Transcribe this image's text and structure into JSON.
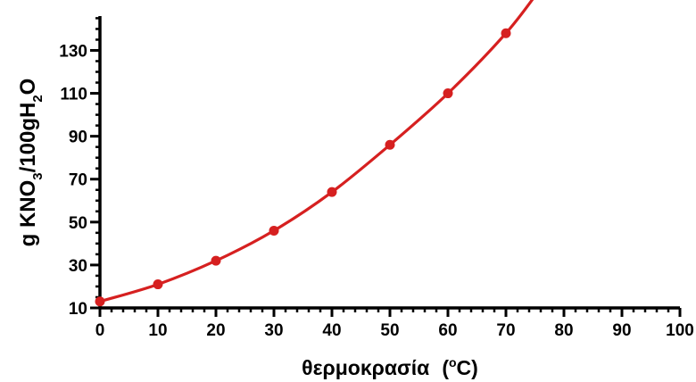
{
  "chart_data": {
    "type": "line",
    "xlabel": {
      "main": "θερμοκρασία",
      "unit_open": "(",
      "unit_degree": "o",
      "unit_letter": "C",
      "unit_close": ")"
    },
    "ylabel": {
      "parts": [
        {
          "text": "g KNO",
          "shift": "none"
        },
        {
          "text": "3",
          "shift": "sub"
        },
        {
          "text": "/100gH",
          "shift": "none"
        },
        {
          "text": "2",
          "shift": "sub"
        },
        {
          "text": "O",
          "shift": "none"
        }
      ]
    },
    "xlim": [
      0,
      100
    ],
    "ylim": [
      10,
      146
    ],
    "x_ticks": [
      0,
      10,
      20,
      30,
      40,
      50,
      60,
      70,
      80,
      90,
      100
    ],
    "y_ticks": [
      10,
      30,
      50,
      70,
      90,
      110,
      130
    ],
    "x_minor_step": 2,
    "y_minor_step": 5,
    "grid": false,
    "legend": "none",
    "series": [
      {
        "color": "#d62020",
        "points": [
          {
            "x": 0,
            "y": 13
          },
          {
            "x": 10,
            "y": 21
          },
          {
            "x": 20,
            "y": 32
          },
          {
            "x": 30,
            "y": 46
          },
          {
            "x": 40,
            "y": 64
          },
          {
            "x": 50,
            "y": 86
          },
          {
            "x": 60,
            "y": 110
          },
          {
            "x": 70,
            "y": 138
          }
        ]
      }
    ]
  }
}
